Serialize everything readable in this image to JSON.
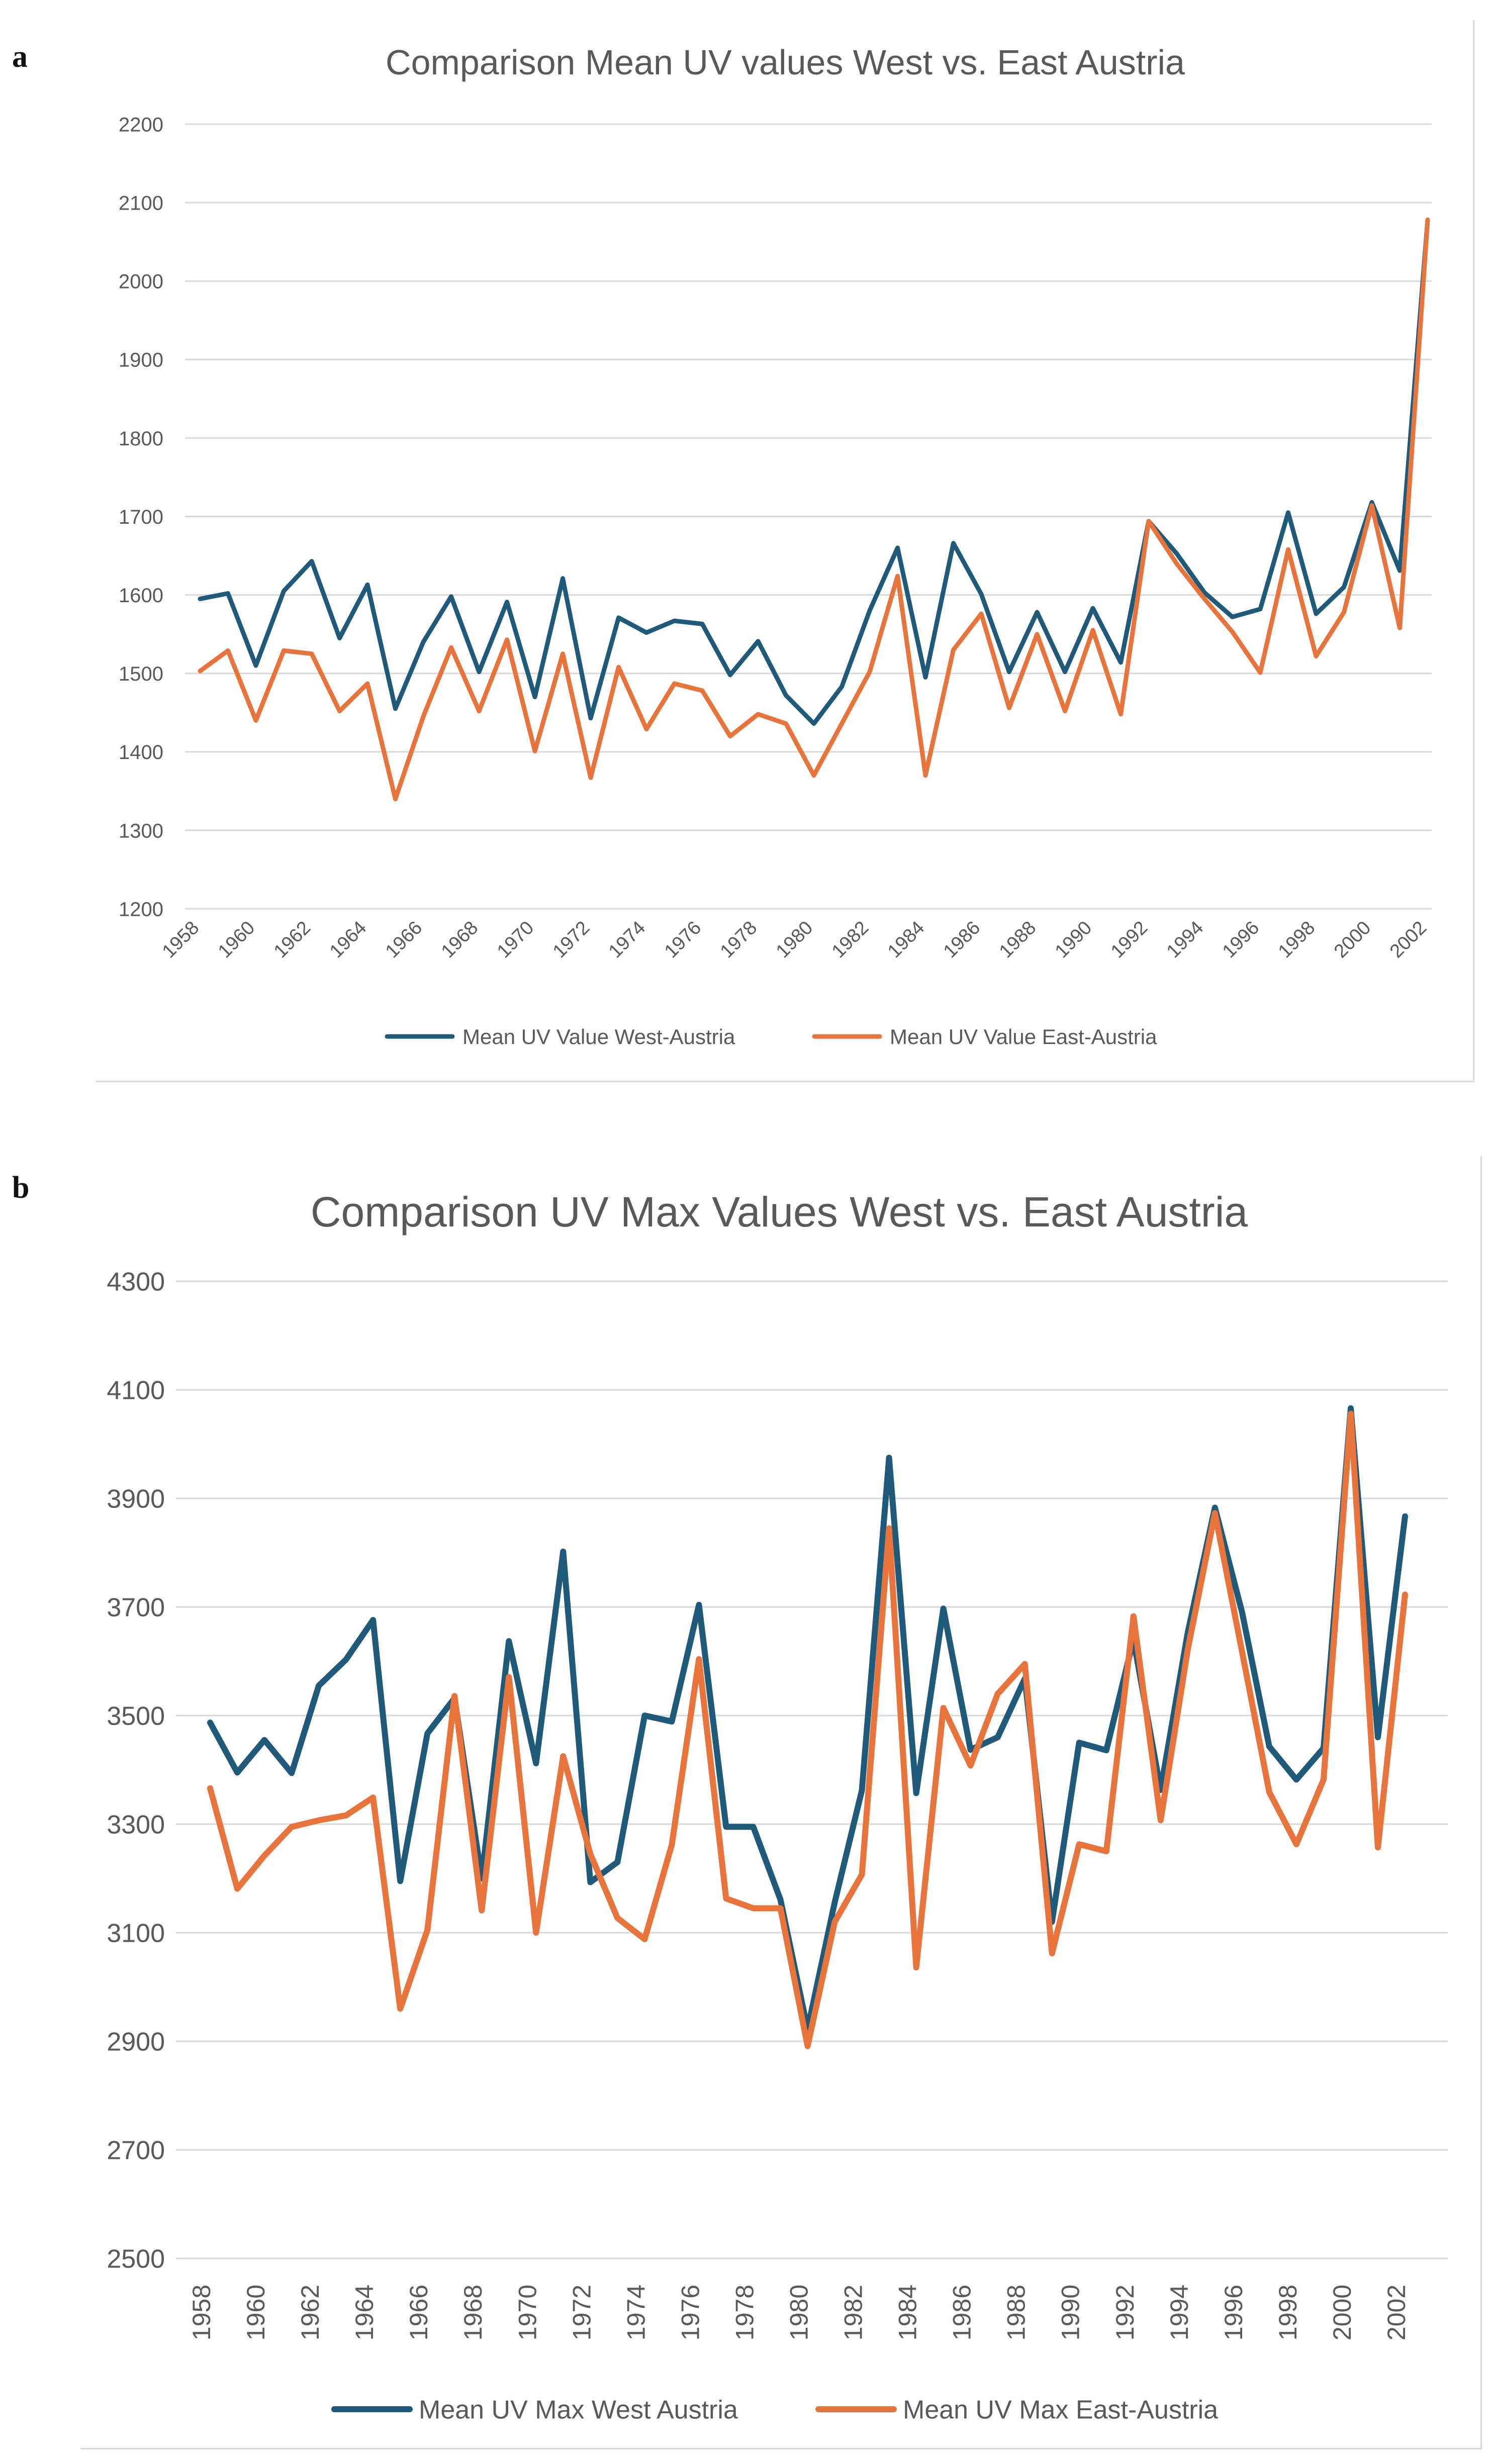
{
  "panels": [
    {
      "letter": "a"
    },
    {
      "letter": "b"
    }
  ],
  "colors": {
    "west": "#1f5a7a",
    "east": "#e8743b",
    "grid": "#d9d9d9",
    "tick": "#595959",
    "title": "#595959"
  },
  "chart_data": [
    {
      "type": "line",
      "title": "Comparison Mean UV values West vs. East Austria",
      "xlabel": "",
      "ylabel": "",
      "ylim": [
        1200,
        2200
      ],
      "yticks": [
        1200,
        1300,
        1400,
        1500,
        1600,
        1700,
        1800,
        1900,
        2000,
        2100,
        2200
      ],
      "x": [
        1958,
        1959,
        1960,
        1961,
        1962,
        1963,
        1964,
        1965,
        1966,
        1967,
        1968,
        1969,
        1970,
        1971,
        1972,
        1973,
        1974,
        1975,
        1976,
        1977,
        1978,
        1979,
        1980,
        1981,
        1982,
        1983,
        1984,
        1985,
        1986,
        1987,
        1988,
        1989,
        1990,
        1991,
        1992,
        1993,
        1994,
        1995,
        1996,
        1997,
        1998,
        1999,
        2000,
        2001,
        2002
      ],
      "xtick_labels": [
        "1958",
        "1960",
        "1962",
        "1964",
        "1966",
        "1968",
        "1970",
        "1972",
        "1974",
        "1976",
        "1978",
        "1980",
        "1982",
        "1984",
        "1986",
        "1988",
        "1990",
        "1992",
        "1994",
        "1996",
        "1998",
        "2000",
        "2002"
      ],
      "grid": true,
      "legend_position": "bottom",
      "series": [
        {
          "name": "Mean UV Value West-Austria",
          "color": "#1f5a7a",
          "values": [
            1595,
            1602,
            1510,
            1605,
            1643,
            1545,
            1613,
            1455,
            1540,
            1598,
            1502,
            1591,
            1470,
            1621,
            1443,
            1571,
            1552,
            1567,
            1563,
            1498,
            1541,
            1472,
            1436,
            1483,
            1580,
            1660,
            1495,
            1666,
            1601,
            1502,
            1578,
            1502,
            1583,
            1514,
            1694,
            1653,
            1603,
            1572,
            1582,
            1705,
            1576,
            1610,
            1718,
            1631,
            2078
          ]
        },
        {
          "name": "Mean UV Value East-Austria",
          "color": "#e8743b",
          "values": [
            1503,
            1529,
            1440,
            1529,
            1525,
            1452,
            1487,
            1340,
            1445,
            1533,
            1452,
            1543,
            1401,
            1525,
            1367,
            1508,
            1429,
            1487,
            1478,
            1420,
            1448,
            1436,
            1370,
            1436,
            1502,
            1624,
            1370,
            1530,
            1576,
            1456,
            1550,
            1452,
            1555,
            1448,
            1694,
            1640,
            1595,
            1553,
            1501,
            1658,
            1522,
            1578,
            1714,
            1558,
            2078
          ]
        }
      ]
    },
    {
      "type": "line",
      "title": "Comparison UV Max Values West vs. East Austria",
      "xlabel": "",
      "ylabel": "",
      "ylim": [
        2500,
        4300
      ],
      "yticks": [
        2500,
        2700,
        2900,
        3100,
        3300,
        3500,
        3700,
        3900,
        4100,
        4300
      ],
      "x": [
        1958,
        1959,
        1960,
        1961,
        1962,
        1963,
        1964,
        1965,
        1966,
        1967,
        1968,
        1969,
        1970,
        1971,
        1972,
        1973,
        1974,
        1975,
        1976,
        1977,
        1978,
        1979,
        1980,
        1981,
        1982,
        1983,
        1984,
        1985,
        1986,
        1987,
        1988,
        1989,
        1990,
        1991,
        1992,
        1993,
        1994,
        1995,
        1996,
        1997,
        1998,
        1999,
        2000,
        2001,
        2002
      ],
      "xtick_labels": [
        "1958",
        "1960",
        "1962",
        "1964",
        "1966",
        "1968",
        "1970",
        "1972",
        "1974",
        "1976",
        "1978",
        "1980",
        "1982",
        "1984",
        "1986",
        "1988",
        "1990",
        "1992",
        "1994",
        "1996",
        "1998",
        "2000",
        "2002"
      ],
      "grid": true,
      "legend_position": "bottom",
      "series": [
        {
          "name": "Mean UV Max West Austria",
          "color": "#1f5a7a",
          "values": [
            3487,
            3395,
            3455,
            3394,
            3555,
            3603,
            3676,
            3195,
            3467,
            3532,
            3200,
            3637,
            3412,
            3802,
            3193,
            3230,
            3500,
            3489,
            3704,
            3295,
            3295,
            3161,
            2922,
            3156,
            3362,
            3975,
            3357,
            3697,
            3437,
            3460,
            3568,
            3120,
            3450,
            3436,
            3640,
            3363,
            3653,
            3883,
            3690,
            3443,
            3382,
            3440,
            4066,
            3460,
            3867
          ]
        },
        {
          "name": "Mean UV Max East-Austria",
          "color": "#e8743b",
          "values": [
            3366,
            3181,
            3242,
            3295,
            3307,
            3316,
            3349,
            2960,
            3105,
            3536,
            3141,
            3571,
            3100,
            3425,
            3245,
            3127,
            3088,
            3262,
            3604,
            3163,
            3145,
            3145,
            2891,
            3120,
            3207,
            3845,
            3036,
            3514,
            3408,
            3540,
            3595,
            3062,
            3263,
            3250,
            3683,
            3307,
            3622,
            3873,
            3617,
            3359,
            3263,
            3382,
            4056,
            3257,
            3723
          ]
        }
      ]
    }
  ]
}
